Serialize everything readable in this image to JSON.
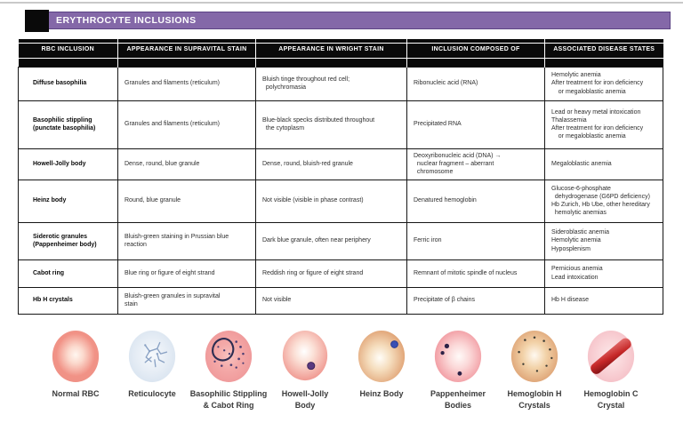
{
  "page": {
    "title": "ERYTHROCYTE  INCLUSIONS"
  },
  "colors": {
    "banner_purple": "#8468a8",
    "banner_border": "#5c4384",
    "table_header_bg": "#0a0a0a",
    "table_border": "#161616",
    "rbc_pink": "#ef9186",
    "reticulocyte_blue": "#dce6f2",
    "stippling_ring_navy": "#2d2d52",
    "howell_jolly_dot_purple": "#5a3a80",
    "heinz_cell_tan": "#df9f70",
    "heinz_dot_blue": "#3a50b4",
    "pappenheimer_dot_dark": "#2c2146",
    "hbc_crystal_red": "#c62828"
  },
  "table": {
    "columns": [
      "RBC INCLUSION",
      "APPEARANCE IN SUPRAVITAL STAIN",
      "APPEARANCE IN WRIGHT STAIN",
      "INCLUSION COMPOSED OF",
      "ASSOCIATED DISEASE STATES"
    ],
    "rows": [
      {
        "inclusion": [
          "Diffuse basophilia"
        ],
        "supravital": [
          "Granules and filaments (reticulum)"
        ],
        "wright": [
          "Bluish tinge throughout red cell;",
          "  polychromasia"
        ],
        "composed": [
          "Ribonucleic acid (RNA)"
        ],
        "diseases": [
          "Hemolytic anemia",
          "After treatment for iron deficiency",
          "    or megaloblastic anemia"
        ]
      },
      {
        "inclusion": [
          "Basophilic stippling",
          "(punctate basophilia)"
        ],
        "supravital": [
          "Granules and filaments (reticulum)"
        ],
        "wright": [
          "Blue-black specks distributed throughout",
          "  the cytoplasm"
        ],
        "composed": [
          "Precipitated RNA"
        ],
        "diseases": [
          "Lead or heavy metal intoxication",
          "Thalassemia",
          "After treatment for iron deficiency",
          "    or megaloblastic anemia"
        ]
      },
      {
        "inclusion": [
          "Howell-Jolly body"
        ],
        "supravital": [
          "Dense, round, blue granule"
        ],
        "wright": [
          "Dense, round, bluish-red granule"
        ],
        "composed": [
          "Deoxyribonucleic acid (DNA) →",
          "  nuclear fragment – aberrant",
          "  chromosome"
        ],
        "diseases": [
          "Megaloblastic anemia"
        ]
      },
      {
        "inclusion": [
          "Heinz body"
        ],
        "supravital": [
          "Round, blue granule"
        ],
        "wright": [
          "Not visible (visible in phase contrast)"
        ],
        "composed": [
          "Denatured hemoglobin"
        ],
        "diseases": [
          "Glucose-6-phosphate",
          "  dehydrogenase (G6PD deficiency)",
          "Hb Zurich, Hb Ube, other hereditary",
          "  hemolytic anemias"
        ]
      },
      {
        "inclusion": [
          "Siderotic granules",
          "(Pappenheimer body)"
        ],
        "supravital": [
          "Bluish-green staining in Prussian blue",
          "reaction"
        ],
        "wright": [
          "Dark blue granule, often near periphery"
        ],
        "composed": [
          "Ferric iron"
        ],
        "diseases": [
          "Sideroblastic anemia",
          "Hemolytic anemia",
          "Hyposplenism"
        ]
      },
      {
        "inclusion": [
          "Cabot ring"
        ],
        "supravital": [
          "Blue ring or figure of eight strand"
        ],
        "wright": [
          "Reddish ring or figure of eight strand"
        ],
        "composed": [
          "Remnant of mitotic spindle of nucleus"
        ],
        "diseases": [
          "Pernicious anemia",
          "Lead intoxication"
        ]
      },
      {
        "inclusion": [
          "Hb H crystals"
        ],
        "supravital": [
          "Bluish-green granules in supravital",
          "stain"
        ],
        "wright": [
          "Not visible"
        ],
        "composed": [
          "Precipitate of β chains"
        ],
        "diseases": [
          "Hb H disease"
        ]
      }
    ]
  },
  "figures": {
    "items": [
      {
        "type": "normal",
        "label": "Normal RBC"
      },
      {
        "type": "reticulocyte",
        "label": "Reticulocyte"
      },
      {
        "type": "stippling-cabot",
        "label": "Basophilic Stippling\n& Cabot Ring"
      },
      {
        "type": "howell-jolly",
        "label": "Howell-Jolly\nBody"
      },
      {
        "type": "heinz",
        "label": "Heinz Body"
      },
      {
        "type": "pappenheimer",
        "label": "Pappenheimer\nBodies"
      },
      {
        "type": "hbh",
        "label": "Hemoglobin H\nCrystals"
      },
      {
        "type": "hbc",
        "label": "Hemoglobin C\nCrystal"
      }
    ]
  }
}
